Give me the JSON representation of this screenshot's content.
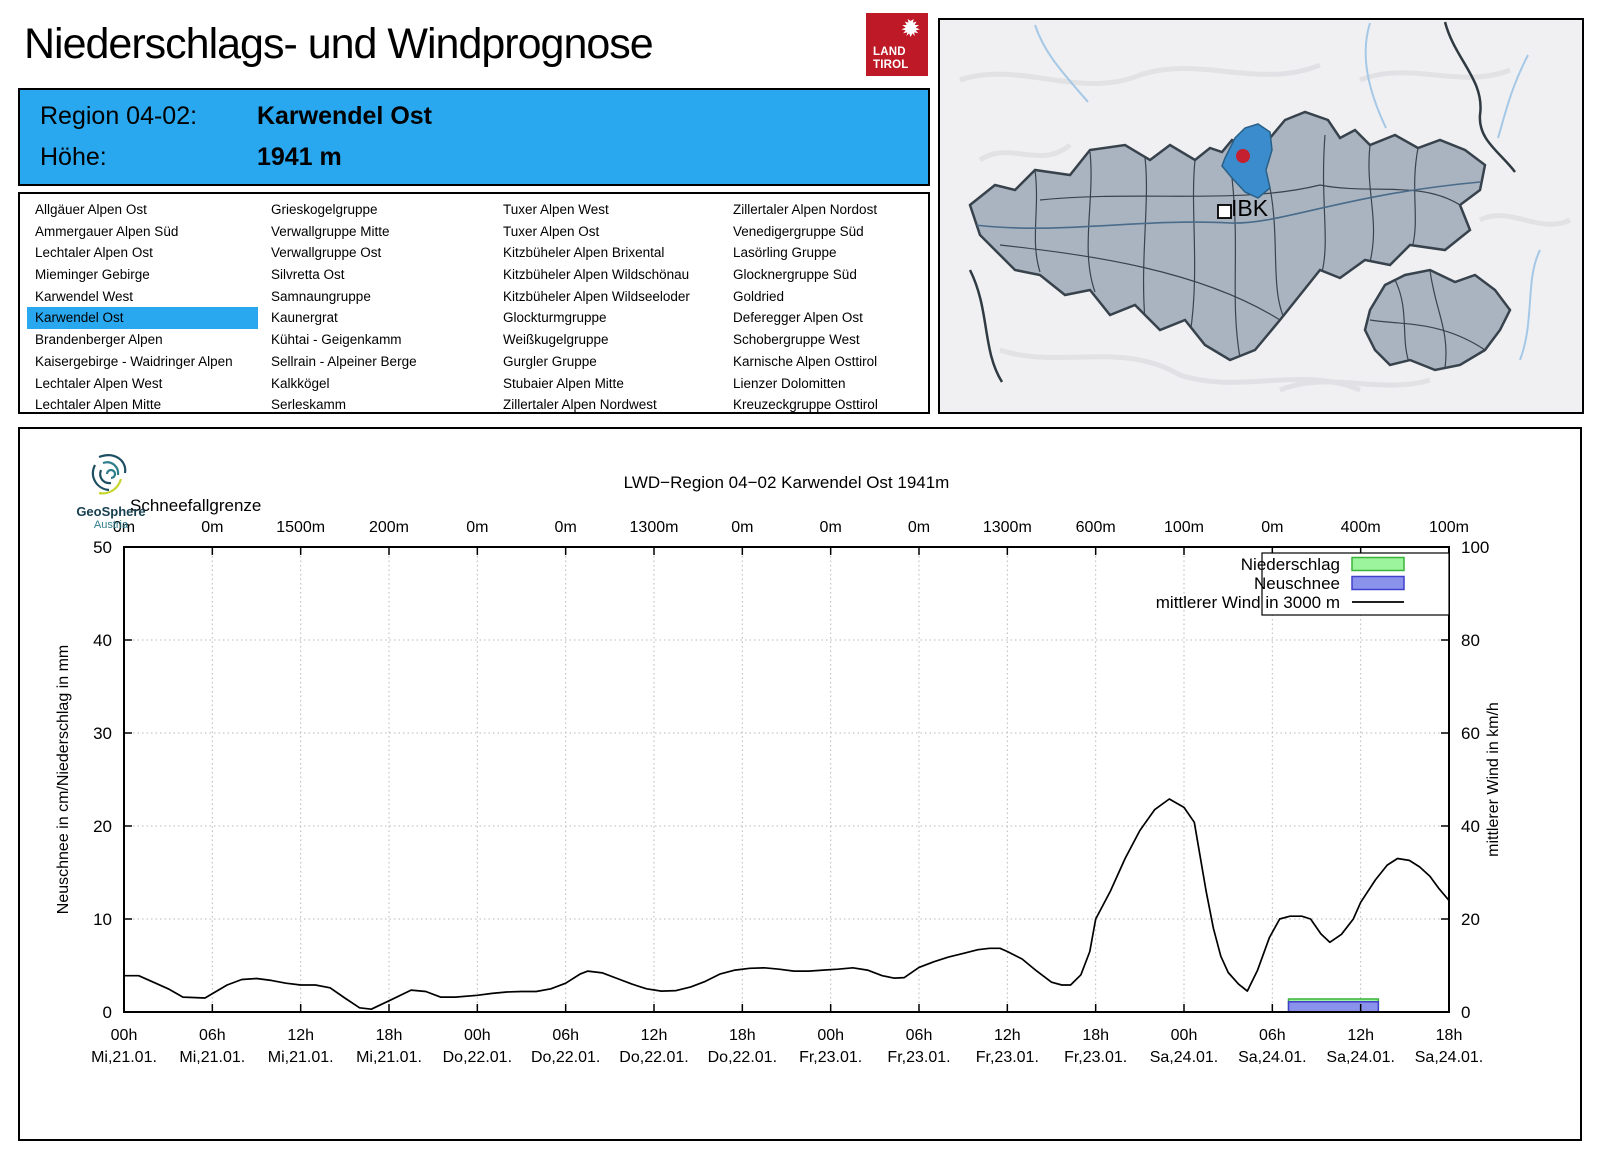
{
  "page": {
    "title": "Niederschlags- und Windprognose"
  },
  "land_tirol_logo": {
    "line1": "LAND",
    "line2": "TIROL"
  },
  "region_header": {
    "region_label": "Region 04-02:",
    "region_value": "Karwendel Ost",
    "altitude_label": "Höhe:",
    "altitude_value": "1941 m"
  },
  "region_list": {
    "selected": "Karwendel Ost",
    "columns": [
      [
        "Allgäuer Alpen Ost",
        "Ammergauer Alpen Süd",
        "Lechtaler Alpen Ost",
        "Mieminger Gebirge",
        "Karwendel West",
        "Karwendel Ost",
        "Brandenberger Alpen",
        "Kaisergebirge - Waidringer Alpen",
        "Lechtaler Alpen West",
        "Lechtaler Alpen Mitte"
      ],
      [
        "Grieskogelgruppe",
        "Verwallgruppe Mitte",
        "Verwallgruppe Ost",
        "Silvretta Ost",
        "Samnaungruppe",
        "Kaunergrat",
        "Kühtai - Geigenkamm",
        "Sellrain - Alpeiner Berge",
        "Kalkkögel",
        "Serleskamm"
      ],
      [
        "Tuxer Alpen West",
        "Tuxer Alpen Ost",
        "Kitzbüheler Alpen Brixental",
        "Kitzbüheler Alpen Wildschönau",
        "Kitzbüheler Alpen Wildseeloder",
        "Glockturmgruppe",
        "Weißkugelgruppe",
        "Gurgler Gruppe",
        "Stubaier Alpen Mitte",
        "Zillertaler Alpen Nordwest"
      ],
      [
        "Zillertaler Alpen Nordost",
        "Venedigergruppe Süd",
        "Lasörling Gruppe",
        "Glocknergruppe Süd",
        "Goldried",
        "Deferegger Alpen Ost",
        "Schobergruppe West",
        "Karnische Alpen Osttirol",
        "Lienzer Dolomitten",
        "Kreuzeckgruppe Osttirol"
      ]
    ]
  },
  "map": {
    "city_label": "IBK"
  },
  "geosphere": {
    "name": "GeoSphere",
    "country": "Austria"
  },
  "chart_data": {
    "type": "line",
    "title": "LWD−Region 04−02 Karwendel Ost 1941m",
    "snowline": {
      "label": "Schneefallgrenze",
      "values": [
        "0m",
        "0m",
        "1500m",
        "200m",
        "0m",
        "0m",
        "1300m",
        "0m",
        "0m",
        "0m",
        "1300m",
        "600m",
        "100m",
        "0m",
        "400m",
        "100m"
      ]
    },
    "x_ticks": [
      {
        "hour": "00h",
        "date": "Mi,21.01."
      },
      {
        "hour": "06h",
        "date": "Mi,21.01."
      },
      {
        "hour": "12h",
        "date": "Mi,21.01."
      },
      {
        "hour": "18h",
        "date": "Mi,21.01."
      },
      {
        "hour": "00h",
        "date": "Do,22.01."
      },
      {
        "hour": "06h",
        "date": "Do,22.01."
      },
      {
        "hour": "12h",
        "date": "Do,22.01."
      },
      {
        "hour": "18h",
        "date": "Do,22.01."
      },
      {
        "hour": "00h",
        "date": "Fr,23.01."
      },
      {
        "hour": "06h",
        "date": "Fr,23.01."
      },
      {
        "hour": "12h",
        "date": "Fr,23.01."
      },
      {
        "hour": "18h",
        "date": "Fr,23.01."
      },
      {
        "hour": "00h",
        "date": "Sa,24.01."
      },
      {
        "hour": "06h",
        "date": "Sa,24.01."
      },
      {
        "hour": "12h",
        "date": "Sa,24.01."
      },
      {
        "hour": "18h",
        "date": "Sa,24.01."
      }
    ],
    "x_total_hours": 90,
    "ylabel_left": "Neuschnee in cm/Niederschlag in mm",
    "ylabel_right": "mittlerer Wind in km/h",
    "ylim_left": [
      0,
      50
    ],
    "yticks_left": [
      0,
      10,
      20,
      30,
      40,
      50
    ],
    "ylim_right": [
      0,
      100
    ],
    "yticks_right": [
      0,
      20,
      40,
      60,
      80,
      100
    ],
    "grid": true,
    "legend_position": "top-right",
    "legend": [
      {
        "label": "Niederschlag",
        "type": "bar",
        "fill": "#9cf49c",
        "stroke": "#3cb43c"
      },
      {
        "label": "Neuschnee",
        "type": "bar",
        "fill": "#8a92ec",
        "stroke": "#4040cc"
      },
      {
        "label": "mittlerer Wind in 3000 m",
        "type": "line",
        "stroke": "#000000"
      }
    ],
    "bars": {
      "start_hour": 79.1,
      "end_hour": 85.2,
      "niederschlag_mm": 1.4,
      "neuschnee_cm": 1.1
    },
    "wind_kmh": [
      [
        0,
        7.8
      ],
      [
        1,
        7.8
      ],
      [
        2,
        6.4
      ],
      [
        3,
        5.0
      ],
      [
        4,
        3.2
      ],
      [
        5.5,
        3.0
      ],
      [
        7,
        5.8
      ],
      [
        8,
        7.0
      ],
      [
        9,
        7.2
      ],
      [
        10,
        6.8
      ],
      [
        11,
        6.2
      ],
      [
        12,
        5.8
      ],
      [
        13,
        5.8
      ],
      [
        14,
        5.2
      ],
      [
        15,
        3.0
      ],
      [
        16,
        0.9
      ],
      [
        16.8,
        0.6
      ],
      [
        18,
        2.4
      ],
      [
        19.5,
        4.7
      ],
      [
        20.5,
        4.4
      ],
      [
        21.5,
        3.2
      ],
      [
        22.5,
        3.2
      ],
      [
        24,
        3.6
      ],
      [
        25,
        4.0
      ],
      [
        26,
        4.3
      ],
      [
        27,
        4.4
      ],
      [
        28,
        4.4
      ],
      [
        29,
        5.0
      ],
      [
        30,
        6.2
      ],
      [
        31,
        8.2
      ],
      [
        31.5,
        8.8
      ],
      [
        32.5,
        8.4
      ],
      [
        33.5,
        7.2
      ],
      [
        34.5,
        6.0
      ],
      [
        35.5,
        5.0
      ],
      [
        36.5,
        4.5
      ],
      [
        37.5,
        4.6
      ],
      [
        38.5,
        5.4
      ],
      [
        39.5,
        6.6
      ],
      [
        40.5,
        8.2
      ],
      [
        41.5,
        9.0
      ],
      [
        42.5,
        9.4
      ],
      [
        43.5,
        9.5
      ],
      [
        44.5,
        9.2
      ],
      [
        45.5,
        8.8
      ],
      [
        46.5,
        8.8
      ],
      [
        47.5,
        9.0
      ],
      [
        48.5,
        9.2
      ],
      [
        49.5,
        9.5
      ],
      [
        50.5,
        9.0
      ],
      [
        51.5,
        7.8
      ],
      [
        52.3,
        7.3
      ],
      [
        53,
        7.4
      ],
      [
        54,
        9.6
      ],
      [
        55,
        10.8
      ],
      [
        56,
        11.8
      ],
      [
        57,
        12.6
      ],
      [
        58,
        13.4
      ],
      [
        58.8,
        13.7
      ],
      [
        59.5,
        13.7
      ],
      [
        60,
        13.0
      ],
      [
        61,
        11.4
      ],
      [
        62,
        8.8
      ],
      [
        63,
        6.4
      ],
      [
        63.7,
        5.8
      ],
      [
        64.3,
        5.8
      ],
      [
        65,
        8.0
      ],
      [
        65.6,
        13.0
      ],
      [
        66,
        20.0
      ],
      [
        67,
        26.0
      ],
      [
        68,
        33.0
      ],
      [
        69,
        39.0
      ],
      [
        70,
        43.5
      ],
      [
        71,
        45.8
      ],
      [
        72,
        44.0
      ],
      [
        72.7,
        40.8
      ],
      [
        73.5,
        26.0
      ],
      [
        74,
        18.0
      ],
      [
        74.5,
        12.0
      ],
      [
        75,
        8.5
      ],
      [
        75.7,
        6.0
      ],
      [
        76.3,
        4.5
      ],
      [
        77,
        9.0
      ],
      [
        77.8,
        16.0
      ],
      [
        78.5,
        20.0
      ],
      [
        79.2,
        20.6
      ],
      [
        80,
        20.6
      ],
      [
        80.6,
        20.0
      ],
      [
        81.3,
        16.8
      ],
      [
        81.9,
        15.0
      ],
      [
        82.7,
        16.7
      ],
      [
        83.5,
        20.0
      ],
      [
        84,
        23.6
      ],
      [
        85,
        28.4
      ],
      [
        85.8,
        31.6
      ],
      [
        86.5,
        33.0
      ],
      [
        87.3,
        32.6
      ],
      [
        88,
        31.2
      ],
      [
        88.7,
        29.2
      ],
      [
        89.3,
        26.6
      ],
      [
        90,
        24.0
      ]
    ]
  },
  "colors": {
    "header_blue": "#29a8f0",
    "map_region_fill": "#a9b4c0",
    "map_region_border": "#37424c",
    "map_highlight": "#3a8ccc",
    "map_marker_red": "#c42030",
    "logo_red": "#be1926"
  }
}
